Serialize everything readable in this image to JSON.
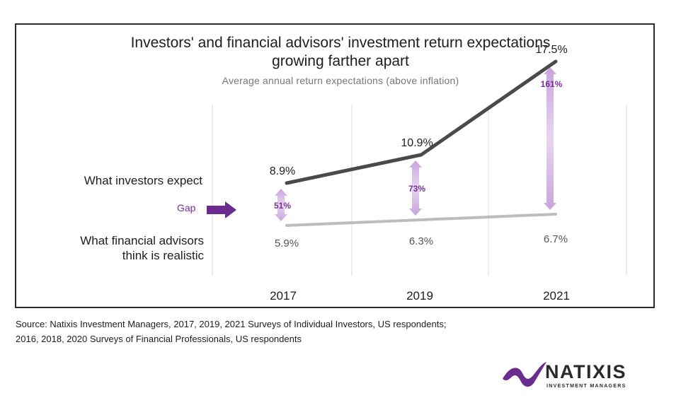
{
  "chart_data": {
    "type": "line",
    "title_lines": [
      "Investors' and financial advisors' investment return expectations",
      "growing farther apart"
    ],
    "subtitle": "Average annual return expectations (above inflation)",
    "categories": [
      "2017",
      "2019",
      "2021"
    ],
    "series": [
      {
        "name": "What investors expect",
        "values": [
          8.9,
          10.9,
          17.5
        ],
        "labels": [
          "8.9%",
          "10.9%",
          "17.5%"
        ],
        "color": "#4a4a4a"
      },
      {
        "name": "What financial advisors think is realistic",
        "name_lines": [
          "What financial advisors",
          "think is realistic"
        ],
        "values": [
          5.9,
          6.3,
          6.7
        ],
        "labels": [
          "5.9%",
          "6.3%",
          "6.7%"
        ],
        "color": "#bdbdbd"
      }
    ],
    "gap_label": "Gap",
    "gap_color": "#7a2e9b",
    "gaps": [
      "51%",
      "73%",
      "161%"
    ],
    "grid": "vertical"
  },
  "source": {
    "line1": "Source: Natixis Investment Managers, 2017, 2019, 2021 Surveys of Individual Investors, US respondents;",
    "line2": "2016, 2018, 2020 Surveys of Financial Professionals, US respondents"
  },
  "logo": {
    "name": "NATIXIS",
    "sub": "INVESTMENT MANAGERS",
    "color": "#6b2c8f"
  }
}
